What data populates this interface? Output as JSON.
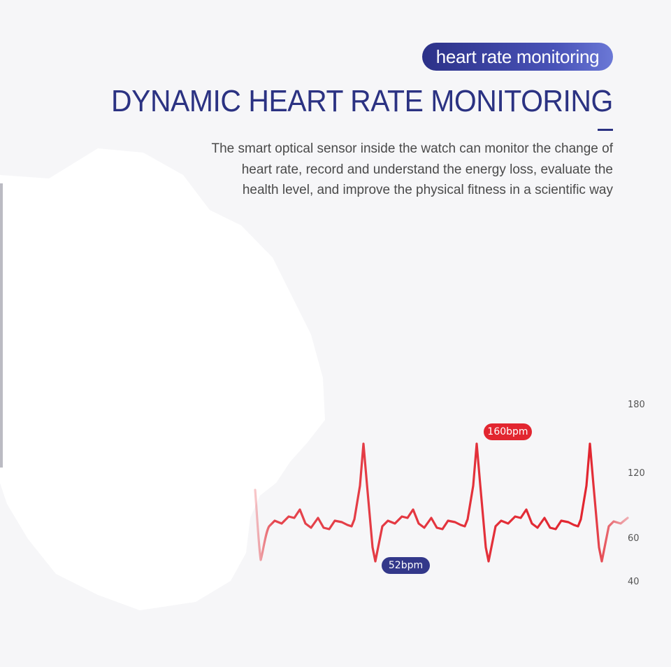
{
  "header": {
    "pill_label": "heart rate monitoring",
    "title": "DYNAMIC HEART RATE MONITORING",
    "description_lines": [
      "The smart optical sensor inside the watch can monitor the change of",
      "heart rate, record and understand the energy loss, evaluate the",
      "health level, and improve the physical fitness in a scientific way"
    ]
  },
  "chart": {
    "y_ticks": [
      "180",
      "120",
      "60",
      "40"
    ],
    "max_label": "160bpm",
    "min_label": "52bpm",
    "line_color": "#e22630",
    "low_badge_color": "#33388a",
    "accent_color": "#2b3282"
  }
}
